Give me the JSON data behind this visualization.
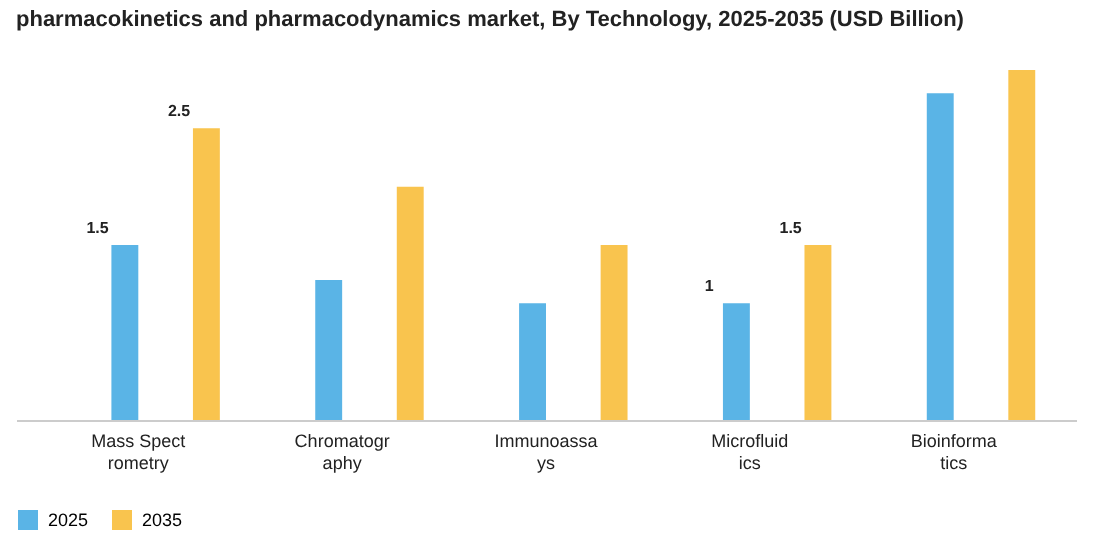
{
  "chart_data": {
    "type": "bar",
    "title": "pharmacokinetics and pharmacodynamics market, By Technology, 2025-2035 (USD Billion)",
    "categories": [
      "Mass Spectrometry",
      "Chromatography",
      "Immunoassays",
      "Microfluidics",
      "Bioinformatics"
    ],
    "series": [
      {
        "name": "2025",
        "color": "#5ab4e6",
        "values": [
          1.5,
          1.2,
          1.0,
          1.0,
          2.8
        ],
        "value_labels": [
          "1.5",
          null,
          null,
          "1",
          null
        ]
      },
      {
        "name": "2035",
        "color": "#f9c44e",
        "values": [
          2.5,
          2.0,
          1.5,
          1.5,
          3.0
        ],
        "value_labels": [
          "2.5",
          null,
          null,
          "1.5",
          null
        ]
      }
    ],
    "legend": "bottom"
  }
}
